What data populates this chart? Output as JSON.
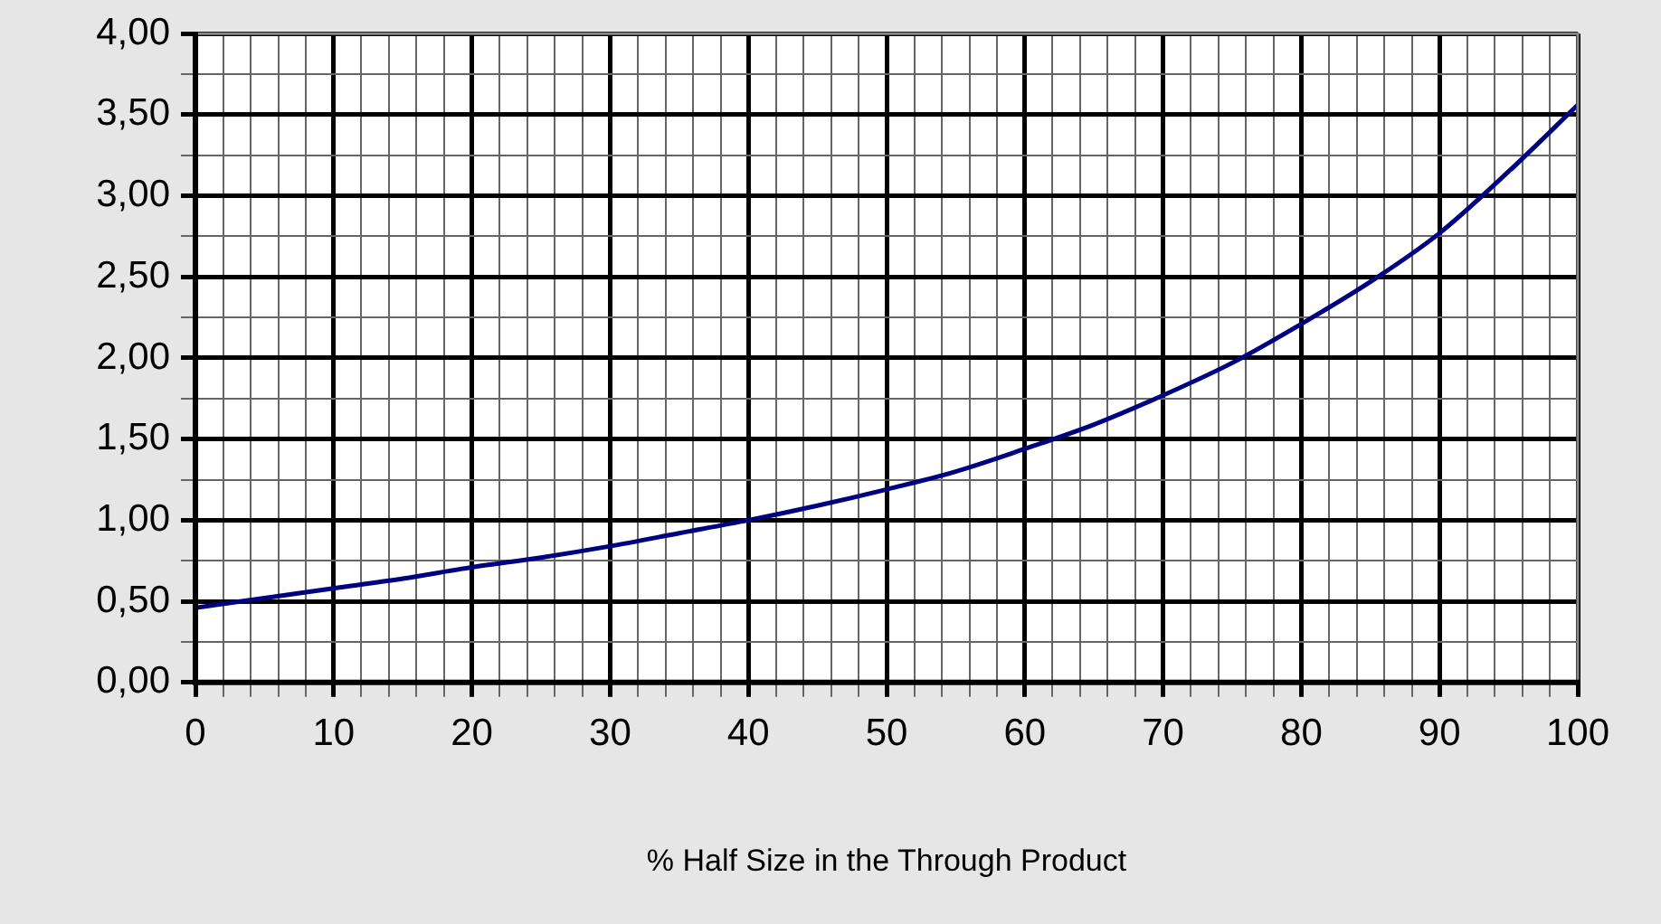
{
  "chart_data": {
    "type": "line",
    "xlabel": "% Half Size in the Through Product",
    "x": [
      0,
      5,
      10,
      15,
      20,
      25,
      30,
      35,
      40,
      45,
      50,
      55,
      60,
      65,
      70,
      75,
      80,
      85,
      90,
      95,
      100
    ],
    "series": [
      {
        "color": "#000080",
        "values": [
          0.46,
          0.52,
          0.58,
          0.64,
          0.71,
          0.77,
          0.84,
          0.92,
          1.0,
          1.09,
          1.19,
          1.3,
          1.44,
          1.59,
          1.77,
          1.97,
          2.21,
          2.47,
          2.77,
          3.15,
          3.56
        ]
      }
    ],
    "xlim": [
      0,
      100
    ],
    "xticks": [
      0,
      {
        "value": 2,
        "label": null
      },
      {
        "value": 4,
        "label": null
      },
      {
        "value": 6,
        "label": null
      },
      {
        "value": 8,
        "label": null
      },
      10,
      {
        "value": 12,
        "label": null
      },
      {
        "value": 14,
        "label": null
      },
      {
        "value": 16,
        "label": null
      },
      {
        "value": 18,
        "label": null
      },
      20,
      {
        "value": 22,
        "label": null
      },
      {
        "value": 24,
        "label": null
      },
      {
        "value": 26,
        "label": null
      },
      {
        "value": 28,
        "label": null
      },
      30,
      {
        "value": 32,
        "label": null
      },
      {
        "value": 34,
        "label": null
      },
      {
        "value": 36,
        "label": null
      },
      {
        "value": 38,
        "label": null
      },
      40,
      {
        "value": 42,
        "label": null
      },
      {
        "value": 44,
        "label": null
      },
      {
        "value": 46,
        "label": null
      },
      {
        "value": 48,
        "label": null
      },
      50,
      {
        "value": 52,
        "label": null
      },
      {
        "value": 54,
        "label": null
      },
      {
        "value": 56,
        "label": null
      },
      {
        "value": 58,
        "label": null
      },
      60,
      {
        "value": 62,
        "label": null
      },
      {
        "value": 64,
        "label": null
      },
      {
        "value": 66,
        "label": null
      },
      {
        "value": 68,
        "label": null
      },
      70,
      {
        "value": 72,
        "label": null
      },
      {
        "value": 74,
        "label": null
      },
      {
        "value": 76,
        "label": null
      },
      {
        "value": 78,
        "label": null
      },
      80,
      {
        "value": 82,
        "label": null
      },
      {
        "value": 84,
        "label": null
      },
      {
        "value": 86,
        "label": null
      },
      {
        "value": 88,
        "label": null
      },
      90,
      {
        "value": 92,
        "label": null
      },
      {
        "value": 94,
        "label": null
      },
      {
        "value": 96,
        "label": null
      },
      {
        "value": 98,
        "label": null
      },
      100
    ],
    "ylim": [
      0,
      4
    ],
    "yticks": [
      {
        "value": 0,
        "label": "0,00"
      },
      {
        "value": 0.25,
        "label": null
      },
      {
        "value": 0.5,
        "label": "0,50"
      },
      {
        "value": 0.75,
        "label": null
      },
      {
        "value": 1,
        "label": "1,00"
      },
      {
        "value": 1.25,
        "label": null
      },
      {
        "value": 1.5,
        "label": "1,50"
      },
      {
        "value": 1.75,
        "label": null
      },
      {
        "value": 2,
        "label": "2,00"
      },
      {
        "value": 2.25,
        "label": null
      },
      {
        "value": 2.5,
        "label": "2,50"
      },
      {
        "value": 2.75,
        "label": null
      },
      {
        "value": 3,
        "label": "3,00"
      },
      {
        "value": 3.25,
        "label": null
      },
      {
        "value": 3.5,
        "label": "3,50"
      },
      {
        "value": 3.75,
        "label": null
      },
      {
        "value": 4,
        "label": "4,00"
      }
    ],
    "grid": true,
    "legend": false,
    "marker": "none",
    "line_style": "solid"
  }
}
